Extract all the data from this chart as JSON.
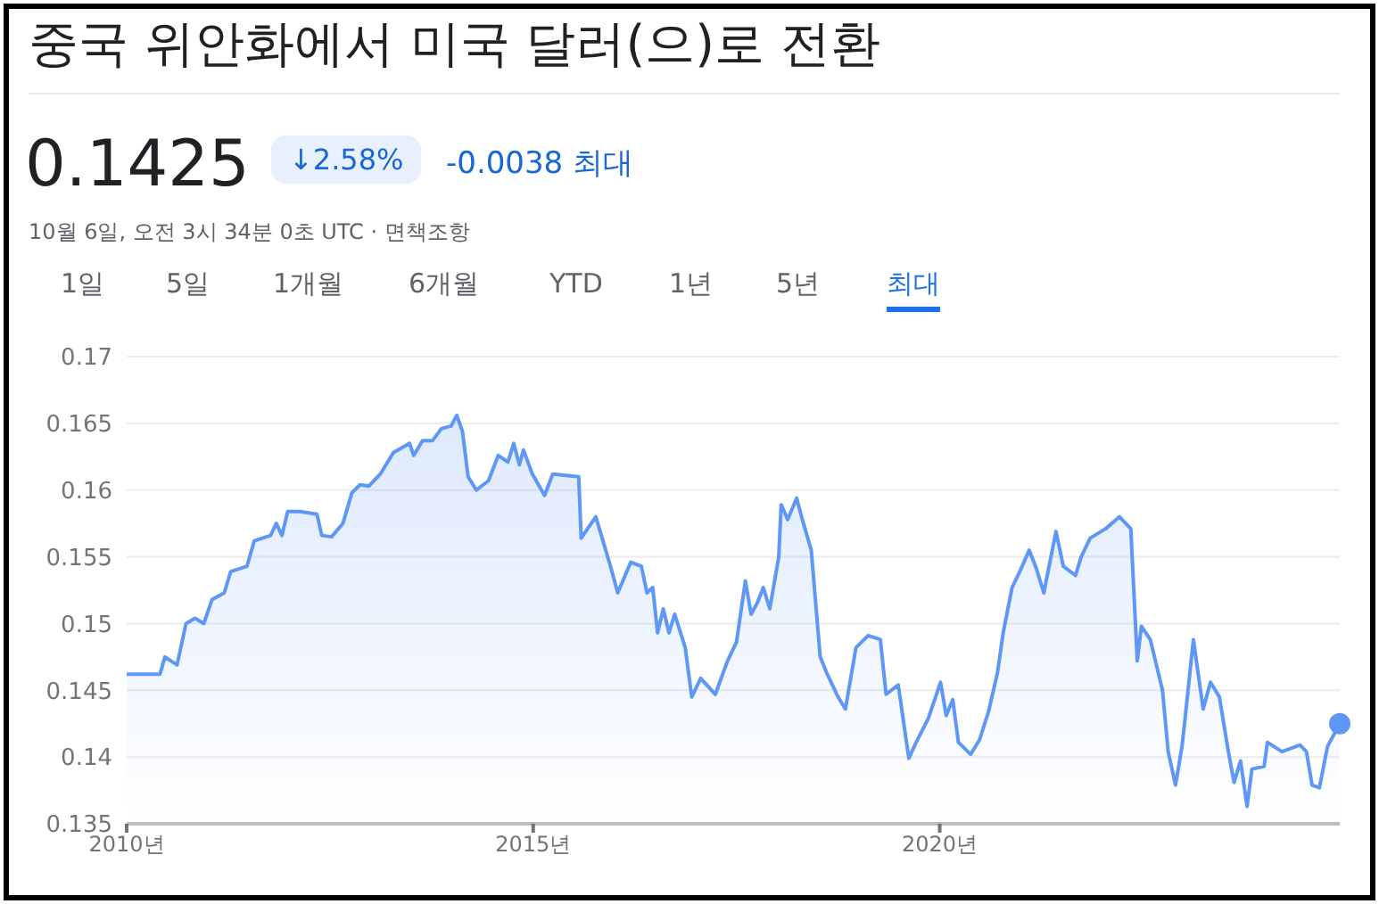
{
  "chart_data": {
    "type": "area",
    "title": "중국 위안화에서 미국 달러(으)로 전환",
    "subtitle": "0.1425",
    "annotations": [
      "↓2.58%",
      "-0.0038 최대",
      "10월 6일, 오전 3시 34분 0초 UTC · 면책조항",
      "1일",
      "5일",
      "1개월",
      "6개월",
      "YTD",
      "1년",
      "5년",
      "최대"
    ],
    "series": [
      {
        "color": "#5e97f6",
        "x": [
          2010.0,
          2010.41,
          2010.47,
          2010.62,
          2010.73,
          2010.84,
          2010.95,
          2011.05,
          2011.2,
          2011.28,
          2011.48,
          2011.57,
          2011.77,
          2011.84,
          2011.91,
          2011.98,
          2012.13,
          2012.34,
          2012.4,
          2012.52,
          2012.66,
          2012.77,
          2012.87,
          2012.98,
          2013.12,
          2013.28,
          2013.48,
          2013.53,
          2013.64,
          2013.76,
          2013.87,
          2013.99,
          2014.06,
          2014.13,
          2014.2,
          2014.3,
          2014.45,
          2014.57,
          2014.69,
          2014.76,
          2014.83,
          2014.88,
          2014.99,
          2015.14,
          2015.24,
          2015.56,
          2015.59,
          2015.77,
          2015.95,
          2016.04,
          2016.2,
          2016.33,
          2016.4,
          2016.47,
          2016.53,
          2016.6,
          2016.67,
          2016.74,
          2016.87,
          2016.95,
          2017.06,
          2017.24,
          2017.39,
          2017.5,
          2017.61,
          2017.68,
          2017.76,
          2017.83,
          2017.91,
          2018.02,
          2018.05,
          2018.13,
          2018.24,
          2018.31,
          2018.42,
          2018.53,
          2018.61,
          2018.75,
          2018.84,
          2018.97,
          2019.12,
          2019.27,
          2019.34,
          2019.49,
          2019.62,
          2019.71,
          2019.86,
          2020.01,
          2020.08,
          2020.16,
          2020.23,
          2020.38,
          2020.49,
          2020.6,
          2020.71,
          2020.78,
          2020.89,
          2021.0,
          2021.1,
          2021.19,
          2021.28,
          2021.43,
          2021.52,
          2021.67,
          2021.74,
          2021.85,
          2022.04,
          2022.21,
          2022.35,
          2022.43,
          2022.48,
          2022.59,
          2022.74,
          2022.81,
          2022.9,
          2022.98,
          2023.03,
          2023.12,
          2023.24,
          2023.33,
          2023.44,
          2023.55,
          2023.62,
          2023.7,
          2023.78,
          2023.84,
          2023.99,
          2024.03,
          2024.21,
          2024.43,
          2024.51,
          2024.58,
          2024.67,
          2024.77,
          2024.92
        ],
        "values": [
          0.1462,
          0.1462,
          0.1475,
          0.1469,
          0.15,
          0.1504,
          0.15,
          0.1518,
          0.1523,
          0.1539,
          0.1543,
          0.1562,
          0.1566,
          0.1575,
          0.1566,
          0.1584,
          0.1584,
          0.1582,
          0.1566,
          0.1565,
          0.1575,
          0.1598,
          0.1604,
          0.1603,
          0.1612,
          0.1628,
          0.1635,
          0.1626,
          0.1637,
          0.1637,
          0.1646,
          0.1648,
          0.1656,
          0.1644,
          0.161,
          0.16,
          0.1607,
          0.1626,
          0.1621,
          0.1635,
          0.1619,
          0.163,
          0.1612,
          0.1596,
          0.1612,
          0.161,
          0.1564,
          0.158,
          0.1543,
          0.1523,
          0.1546,
          0.1543,
          0.1523,
          0.1527,
          0.1493,
          0.1511,
          0.1493,
          0.1507,
          0.1482,
          0.1445,
          0.1459,
          0.1447,
          0.1472,
          0.1486,
          0.1532,
          0.1507,
          0.1516,
          0.1527,
          0.1511,
          0.155,
          0.1589,
          0.1578,
          0.1594,
          0.1578,
          0.1555,
          0.1475,
          0.1463,
          0.1445,
          0.1436,
          0.1482,
          0.1491,
          0.1488,
          0.1447,
          0.1454,
          0.1399,
          0.1411,
          0.1429,
          0.1456,
          0.1431,
          0.1443,
          0.1411,
          0.1402,
          0.1413,
          0.1434,
          0.1463,
          0.1493,
          0.1527,
          0.1541,
          0.1555,
          0.1541,
          0.1523,
          0.1569,
          0.1543,
          0.1536,
          0.155,
          0.1564,
          0.1571,
          0.158,
          0.1571,
          0.1472,
          0.1498,
          0.1488,
          0.145,
          0.1404,
          0.1379,
          0.1408,
          0.1436,
          0.1488,
          0.1436,
          0.1456,
          0.1445,
          0.1404,
          0.1381,
          0.1397,
          0.1363,
          0.1391,
          0.1393,
          0.1411,
          0.1404,
          0.1409,
          0.1404,
          0.1379,
          0.1377,
          0.1408,
          0.1425
        ]
      },
      {
        "type": "scatter",
        "color": "#5e97f6",
        "marker": "circle",
        "x": [
          2024.92
        ],
        "values": [
          0.1425
        ]
      }
    ],
    "xlim": [
      2010,
      2024.92
    ],
    "xticks": [
      {
        "value": 2010,
        "label": "2010년"
      },
      {
        "value": 2015,
        "label": "2015년"
      },
      {
        "value": 2020,
        "label": "2020년"
      }
    ],
    "ylim": [
      0.135,
      0.17
    ],
    "yticks": [
      0.135,
      0.14,
      0.145,
      0.15,
      0.155,
      0.16,
      0.165,
      0.17
    ],
    "grid": "y",
    "marker": "none",
    "line_style": "solid"
  }
}
